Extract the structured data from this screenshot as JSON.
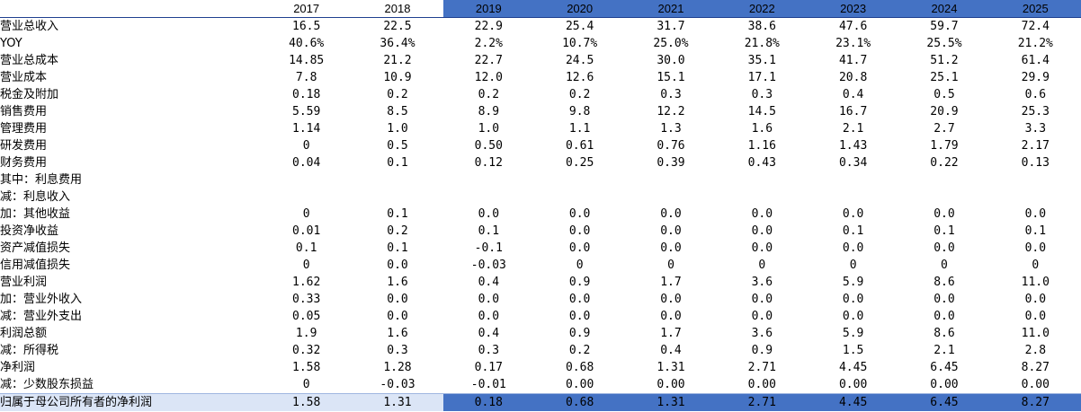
{
  "highlight_color": "#4472c4",
  "last_row_color": "#dbe5f6",
  "header": {
    "label": "",
    "years": [
      "2017",
      "2018",
      "2019",
      "2020",
      "2021",
      "2022",
      "2023",
      "2024",
      "2025"
    ],
    "highlight_from_index": 2
  },
  "rows": [
    {
      "label": "营业总收入",
      "indent": 0,
      "values": [
        "16.5",
        "22.5",
        "22.9",
        "25.4",
        "31.7",
        "38.6",
        "47.6",
        "59.7",
        "72.4"
      ]
    },
    {
      "label": "YOY",
      "indent": 0,
      "values": [
        "40.6%",
        "36.4%",
        "2.2%",
        "10.7%",
        "25.0%",
        "21.8%",
        "23.1%",
        "25.5%",
        "21.2%"
      ]
    },
    {
      "label": "营业总成本",
      "indent": 0,
      "values": [
        "14.85",
        "21.2",
        "22.7",
        "24.5",
        "30.0",
        "35.1",
        "41.7",
        "51.2",
        "61.4"
      ]
    },
    {
      "label": "营业成本",
      "indent": 1,
      "values": [
        "7.8",
        "10.9",
        "12.0",
        "12.6",
        "15.1",
        "17.1",
        "20.8",
        "25.1",
        "29.9"
      ]
    },
    {
      "label": "税金及附加",
      "indent": 1,
      "values": [
        "0.18",
        "0.2",
        "0.2",
        "0.2",
        "0.3",
        "0.3",
        "0.4",
        "0.5",
        "0.6"
      ]
    },
    {
      "label": "销售费用",
      "indent": 1,
      "values": [
        "5.59",
        "8.5",
        "8.9",
        "9.8",
        "12.2",
        "14.5",
        "16.7",
        "20.9",
        "25.3"
      ]
    },
    {
      "label": "管理费用",
      "indent": 1,
      "values": [
        "1.14",
        "1.0",
        "1.0",
        "1.1",
        "1.3",
        "1.6",
        "2.1",
        "2.7",
        "3.3"
      ]
    },
    {
      "label": "研发费用",
      "indent": 1,
      "values": [
        "0",
        "0.5",
        "0.50",
        "0.61",
        "0.76",
        "1.16",
        "1.43",
        "1.79",
        "2.17"
      ]
    },
    {
      "label": "财务费用",
      "indent": 1,
      "values": [
        "0.04",
        "0.1",
        "0.12",
        "0.25",
        "0.39",
        "0.43",
        "0.34",
        "0.22",
        "0.13"
      ]
    },
    {
      "label": "其中：利息费用",
      "indent": 2,
      "values": [
        "",
        "",
        "",
        "",
        "",
        "",
        "",
        "",
        ""
      ]
    },
    {
      "label": "减：利息收入",
      "indent": 3,
      "values": [
        "",
        "",
        "",
        "",
        "",
        "",
        "",
        "",
        ""
      ]
    },
    {
      "label": "加：其他收益",
      "indent": 1,
      "values": [
        "0",
        "0.1",
        "0.0",
        "0.0",
        "0.0",
        "0.0",
        "0.0",
        "0.0",
        "0.0"
      ]
    },
    {
      "label": "投资净收益",
      "indent": 1,
      "values": [
        "0.01",
        "0.2",
        "0.1",
        "0.0",
        "0.0",
        "0.0",
        "0.1",
        "0.1",
        "0.1"
      ]
    },
    {
      "label": "资产减值损失",
      "indent": 1,
      "values": [
        "0.1",
        "0.1",
        "-0.1",
        "0.0",
        "0.0",
        "0.0",
        "0.0",
        "0.0",
        "0.0"
      ]
    },
    {
      "label": "信用减值损失",
      "indent": 1,
      "values": [
        "0",
        "0.0",
        "-0.03",
        "0",
        "0",
        "0",
        "0",
        "0",
        "0"
      ]
    },
    {
      "label": "营业利润",
      "indent": 0,
      "values": [
        "1.62",
        "1.6",
        "0.4",
        "0.9",
        "1.7",
        "3.6",
        "5.9",
        "8.6",
        "11.0"
      ]
    },
    {
      "label": "加：营业外收入",
      "indent": 1,
      "values": [
        "0.33",
        "0.0",
        "0.0",
        "0.0",
        "0.0",
        "0.0",
        "0.0",
        "0.0",
        "0.0"
      ]
    },
    {
      "label": "减：营业外支出",
      "indent": 1,
      "values": [
        "0.05",
        "0.0",
        "0.0",
        "0.0",
        "0.0",
        "0.0",
        "0.0",
        "0.0",
        "0.0"
      ]
    },
    {
      "label": "利润总额",
      "indent": 0,
      "values": [
        "1.9",
        "1.6",
        "0.4",
        "0.9",
        "1.7",
        "3.6",
        "5.9",
        "8.6",
        "11.0"
      ]
    },
    {
      "label": "减：所得税",
      "indent": 1,
      "values": [
        "0.32",
        "0.3",
        "0.3",
        "0.2",
        "0.4",
        "0.9",
        "1.5",
        "2.1",
        "2.8"
      ]
    },
    {
      "label": "净利润",
      "indent": 0,
      "values": [
        "1.58",
        "1.28",
        "0.17",
        "0.68",
        "1.31",
        "2.71",
        "4.45",
        "6.45",
        "8.27"
      ]
    },
    {
      "label": "减：少数股东损益",
      "indent": 1,
      "values": [
        "0",
        "-0.03",
        "-0.01",
        "0.00",
        "0.00",
        "0.00",
        "0.00",
        "0.00",
        "0.00"
      ]
    },
    {
      "label": "归属于母公司所有者的净利润",
      "indent": 1,
      "values": [
        "1.58",
        "1.31",
        "0.18",
        "0.68",
        "1.31",
        "2.71",
        "4.45",
        "6.45",
        "8.27"
      ]
    }
  ]
}
